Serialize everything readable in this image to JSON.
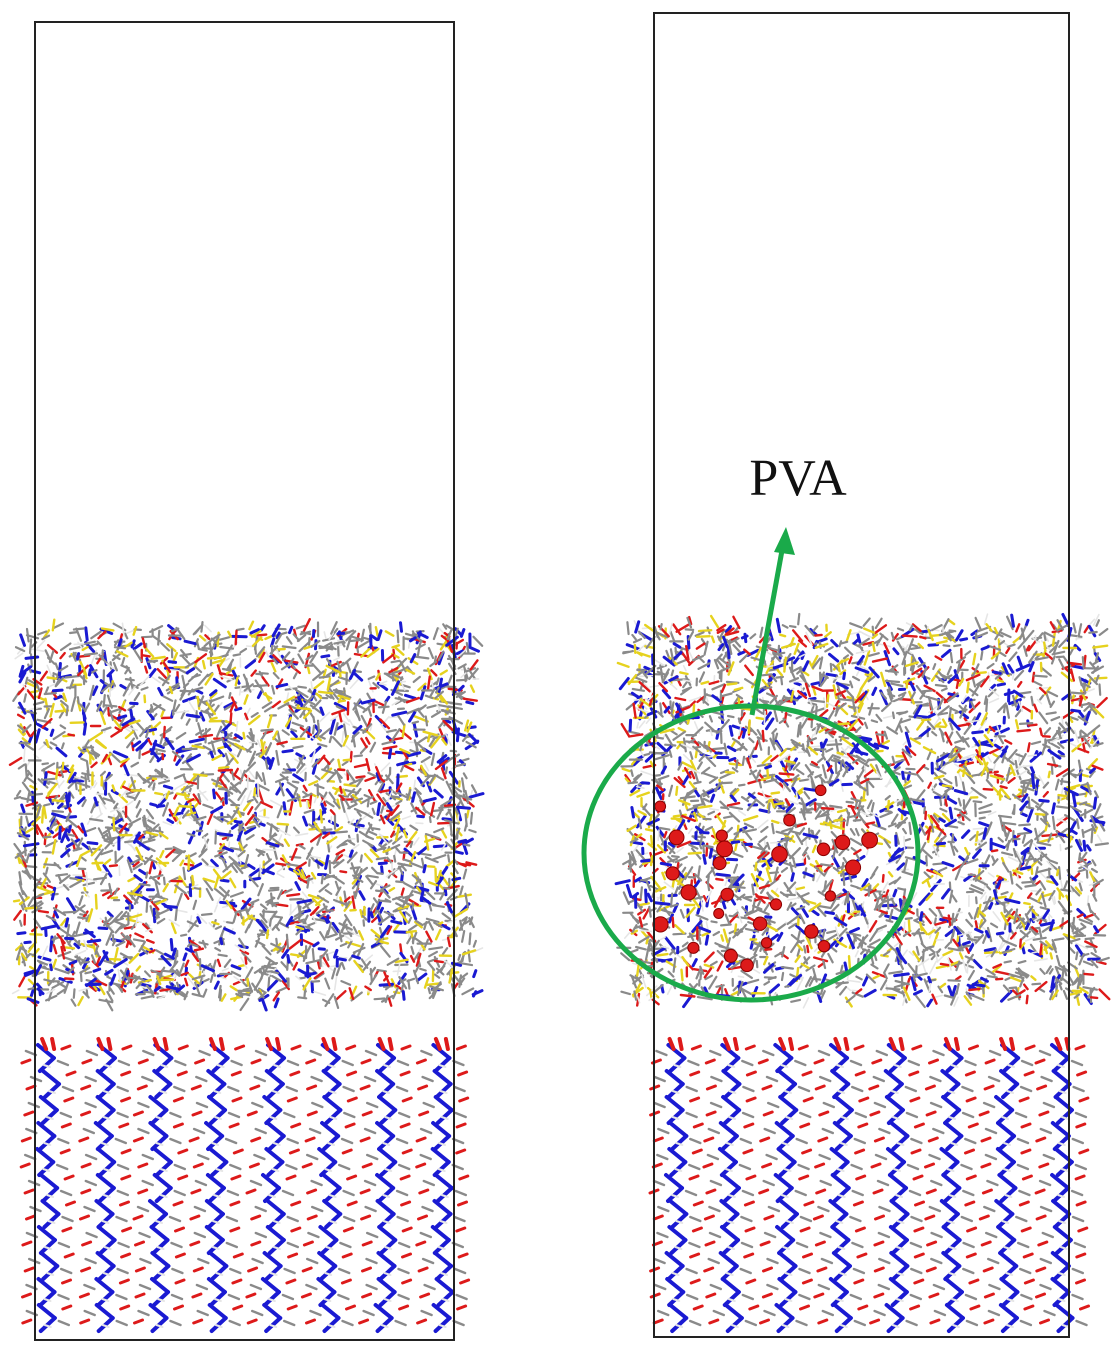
{
  "annotation": {
    "label": "PVA",
    "highlight_color": "#1aaa4a"
  },
  "atom_colors": {
    "carbon": "#8a8a8a",
    "hydrogen": "#e6e6e6",
    "nitrogen": "#1a1ad2",
    "oxygen": "#dd1a1a",
    "sulfur": "#e6d21e"
  },
  "panels": [
    {
      "name": "left-panel",
      "has_pva": false
    },
    {
      "name": "right-panel",
      "has_pva": true
    }
  ]
}
